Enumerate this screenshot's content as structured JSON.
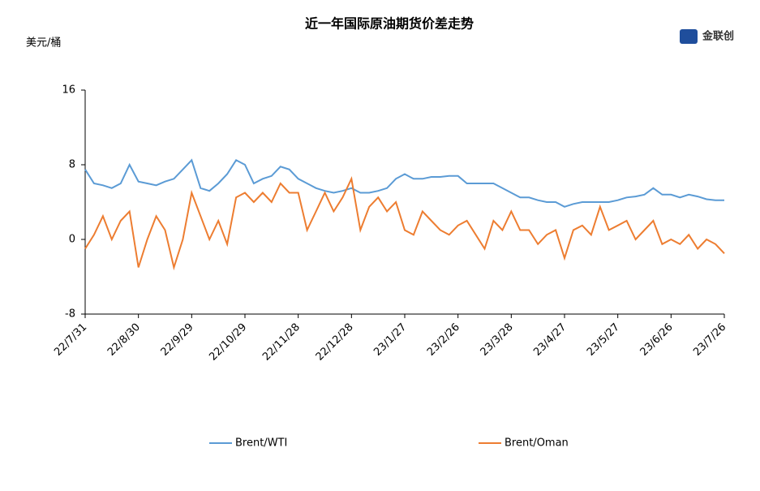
{
  "logo": "金联创",
  "chart_data": {
    "type": "line",
    "title": "近一年国际原油期货价差走势",
    "y_label": "美元/桶",
    "categories": [
      "22/7/31",
      null,
      null,
      null,
      null,
      null,
      "22/8/30",
      null,
      null,
      null,
      null,
      null,
      "22/9/29",
      null,
      null,
      null,
      null,
      null,
      "22/10/29",
      null,
      null,
      null,
      null,
      null,
      "22/11/28",
      null,
      null,
      null,
      null,
      null,
      "22/12/28",
      null,
      null,
      null,
      null,
      null,
      "23/1/27",
      null,
      null,
      null,
      null,
      null,
      "23/2/26",
      null,
      null,
      null,
      null,
      null,
      "23/3/28",
      null,
      null,
      null,
      null,
      null,
      "23/4/27",
      null,
      null,
      null,
      null,
      null,
      "23/5/27",
      null,
      null,
      null,
      null,
      null,
      "23/6/26",
      null,
      null,
      null,
      null,
      null,
      "23/7/26"
    ],
    "series": [
      {
        "name": "Brent/WTI",
        "color": "#5b9bd5",
        "values": [
          7.5,
          6,
          5.8,
          5.5,
          6,
          8,
          6.2,
          6,
          5.8,
          6.2,
          6.5,
          7.5,
          8.5,
          5.5,
          5.2,
          6,
          7,
          8.5,
          8,
          6,
          6.5,
          6.8,
          7.8,
          7.5,
          6.5,
          6,
          5.5,
          5.2,
          5,
          5.2,
          5.5,
          5,
          5,
          5.2,
          5.5,
          6.5,
          7,
          6.5,
          6.5,
          6.7,
          6.7,
          6.8,
          6.8,
          6,
          6,
          6,
          6,
          5.5,
          5,
          4.5,
          4.5,
          4.2,
          4,
          4,
          3.5,
          3.8,
          4,
          4,
          4,
          4,
          4.2,
          4.5,
          4.6,
          4.8,
          5.5,
          4.8,
          4.8,
          4.5,
          4.8,
          4.6,
          4.3,
          4.2,
          4.2
        ]
      },
      {
        "name": "Brent/Oman",
        "color": "#ed7d31",
        "values": [
          -1,
          0.5,
          2.5,
          0,
          2,
          3,
          -3,
          0,
          2.5,
          1,
          -3,
          0,
          5,
          2.5,
          0,
          2,
          -0.5,
          4.5,
          5,
          4,
          5,
          4,
          6,
          5,
          5,
          1,
          3,
          5,
          3,
          4.5,
          6.5,
          1,
          3.5,
          4.5,
          3,
          4,
          1,
          0.5,
          3,
          2,
          1,
          0.5,
          1.5,
          2,
          0.5,
          -1,
          2,
          1,
          3,
          1,
          1,
          -0.5,
          0.5,
          1,
          -2,
          1,
          1.5,
          0.5,
          3.5,
          1,
          1.5,
          2,
          0,
          1,
          2,
          -0.5,
          0,
          -0.5,
          0.5,
          -1,
          0,
          -0.5,
          -1.5
        ]
      }
    ],
    "ylim": [
      -8,
      16
    ],
    "yticks": [
      -8,
      0,
      8,
      16
    ],
    "grid": false,
    "legend": "bottom"
  }
}
